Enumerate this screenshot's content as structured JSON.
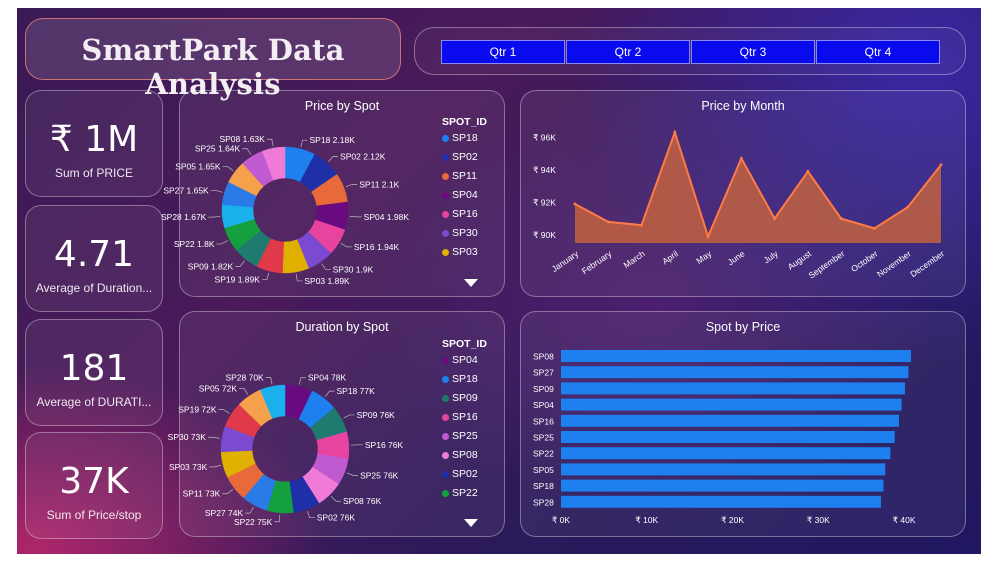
{
  "title": "SmartPark Data Analysis",
  "quarters": [
    "Qtr 1",
    "Qtr 2",
    "Qtr 3",
    "Qtr 4"
  ],
  "kpis": [
    {
      "value": "₹ 1M",
      "label": "Sum of PRICE"
    },
    {
      "value": "4.71",
      "label": "Average of Duration..."
    },
    {
      "value": "181",
      "label": "Average of DURATI..."
    },
    {
      "value": "37K",
      "label": "Sum of Price/stop"
    }
  ],
  "colors": {
    "accent_blue": "#0a0aee",
    "area_orange": "#e8693a",
    "bar_blue": "#1e7fef"
  },
  "chart_data": [
    {
      "type": "pie",
      "title": "Price by Spot",
      "legend_title": "SPOT_ID",
      "legend": [
        {
          "name": "SP18",
          "color": "#1e7fef"
        },
        {
          "name": "SP02",
          "color": "#1f2fa8"
        },
        {
          "name": "SP11",
          "color": "#e8693a"
        },
        {
          "name": "SP04",
          "color": "#6a0a80"
        },
        {
          "name": "SP16",
          "color": "#e6449e"
        },
        {
          "name": "SP30",
          "color": "#7a4ad0"
        },
        {
          "name": "SP03",
          "color": "#e0b000"
        }
      ],
      "slices": [
        {
          "name": "SP18",
          "value": 2.18,
          "label": "SP18 2.18K",
          "color": "#1e7fef"
        },
        {
          "name": "SP02",
          "value": 2.12,
          "label": "SP02 2.12K",
          "color": "#1f2fa8"
        },
        {
          "name": "SP11",
          "value": 2.1,
          "label": "SP11 2.1K",
          "color": "#e8693a"
        },
        {
          "name": "SP04",
          "value": 1.98,
          "label": "SP04 1.98K",
          "color": "#6a0a80"
        },
        {
          "name": "SP16",
          "value": 1.94,
          "label": "SP16 1.94K",
          "color": "#e6449e"
        },
        {
          "name": "SP30",
          "value": 1.9,
          "label": "SP30 1.9K",
          "color": "#7a4ad0"
        },
        {
          "name": "SP03",
          "value": 1.89,
          "label": "SP03 1.89K",
          "color": "#e0b000"
        },
        {
          "name": "SP19",
          "value": 1.89,
          "label": "SP19 1.89K",
          "color": "#e03a4a"
        },
        {
          "name": "SP09",
          "value": 1.82,
          "label": "SP09 1.82K",
          "color": "#1f7a70"
        },
        {
          "name": "SP22",
          "value": 1.8,
          "label": "SP22 1.8K",
          "color": "#15a040"
        },
        {
          "name": "SP28",
          "value": 1.67,
          "label": "SP28 1.67K",
          "color": "#1ab0ec"
        },
        {
          "name": "SP27",
          "value": 1.65,
          "label": "SP27 1.65K",
          "color": "#2a7ae8"
        },
        {
          "name": "SP05",
          "value": 1.65,
          "label": "SP05 1.65K",
          "color": "#f5a04a"
        },
        {
          "name": "SP25",
          "value": 1.64,
          "label": "SP25 1.64K",
          "color": "#c05ad0"
        },
        {
          "name": "SP08",
          "value": 1.63,
          "label": "SP08 1.63K",
          "color": "#f07ad8"
        }
      ]
    },
    {
      "type": "area",
      "title": "Price by Month",
      "categories": [
        "January",
        "February",
        "March",
        "April",
        "May",
        "June",
        "July",
        "August",
        "September",
        "October",
        "November",
        "December"
      ],
      "values": [
        91900,
        90800,
        90600,
        96300,
        89900,
        94700,
        91000,
        93900,
        91000,
        90400,
        91700,
        94300
      ],
      "ylim": [
        89500,
        97000
      ],
      "yticks": [
        90000,
        92000,
        94000,
        96000
      ],
      "ytick_labels": [
        "₹ 90K",
        "₹ 92K",
        "₹ 94K",
        "₹ 96K"
      ]
    },
    {
      "type": "pie",
      "title": "Duration by Spot",
      "legend_title": "SPOT_ID",
      "legend": [
        {
          "name": "SP04",
          "color": "#6a0a80"
        },
        {
          "name": "SP18",
          "color": "#1e7fef"
        },
        {
          "name": "SP09",
          "color": "#1f7a70"
        },
        {
          "name": "SP16",
          "color": "#e6449e"
        },
        {
          "name": "SP25",
          "color": "#c05ad0"
        },
        {
          "name": "SP08",
          "color": "#f07ad8"
        },
        {
          "name": "SP02",
          "color": "#1f2fa8"
        },
        {
          "name": "SP22",
          "color": "#15a040"
        }
      ],
      "slices": [
        {
          "name": "SP04",
          "value": 78,
          "label": "SP04 78K",
          "color": "#6a0a80"
        },
        {
          "name": "SP18",
          "value": 77,
          "label": "SP18 77K",
          "color": "#1e7fef"
        },
        {
          "name": "SP09",
          "value": 76,
          "label": "SP09 76K",
          "color": "#1f7a70"
        },
        {
          "name": "SP16",
          "value": 76,
          "label": "SP16 76K",
          "color": "#e6449e"
        },
        {
          "name": "SP25",
          "value": 76,
          "label": "SP25 76K",
          "color": "#c05ad0"
        },
        {
          "name": "SP08",
          "value": 76,
          "label": "SP08 76K",
          "color": "#f07ad8"
        },
        {
          "name": "SP02",
          "value": 76,
          "label": "SP02 76K",
          "color": "#1f2fa8"
        },
        {
          "name": "SP22",
          "value": 75,
          "label": "SP22 75K",
          "color": "#15a040"
        },
        {
          "name": "SP27",
          "value": 74,
          "label": "SP27 74K",
          "color": "#2a7ae8"
        },
        {
          "name": "SP11",
          "value": 73,
          "label": "SP11 73K",
          "color": "#e8693a"
        },
        {
          "name": "SP03",
          "value": 73,
          "label": "SP03 73K",
          "color": "#e0b000"
        },
        {
          "name": "SP30",
          "value": 73,
          "label": "SP30 73K",
          "color": "#7a4ad0"
        },
        {
          "name": "SP19",
          "value": 72,
          "label": "SP19 72K",
          "color": "#e03a4a"
        },
        {
          "name": "SP05",
          "value": 72,
          "label": "SP05 72K",
          "color": "#f5a04a"
        },
        {
          "name": "SP28",
          "value": 70,
          "label": "SP28 70K",
          "color": "#1ab0ec"
        }
      ]
    },
    {
      "type": "bar",
      "orientation": "horizontal",
      "title": "Spot by Price",
      "categories": [
        "SP08",
        "SP27",
        "SP09",
        "SP04",
        "SP16",
        "SP25",
        "SP22",
        "SP05",
        "SP18",
        "SP28"
      ],
      "values": [
        40800,
        40500,
        40100,
        39700,
        39400,
        38900,
        38400,
        37800,
        37600,
        37300
      ],
      "xlim": [
        0,
        45000
      ],
      "xticks": [
        0,
        10000,
        20000,
        30000,
        40000
      ],
      "xtick_labels": [
        "₹ 0K",
        "₹ 10K",
        "₹ 20K",
        "₹ 30K",
        "₹ 40K"
      ]
    }
  ]
}
